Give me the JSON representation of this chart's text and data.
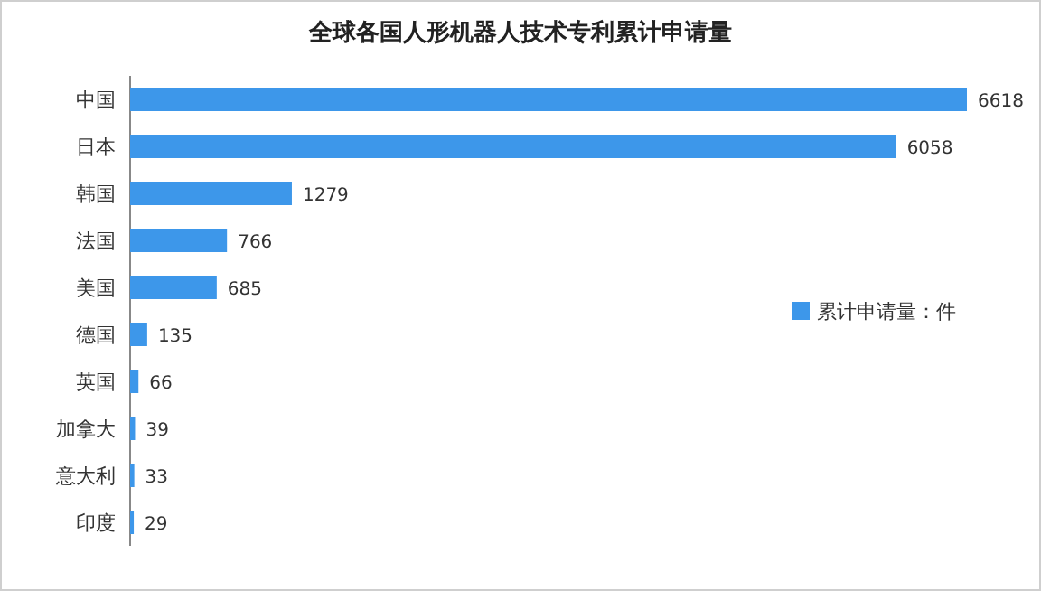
{
  "chart_data": {
    "type": "bar",
    "orientation": "horizontal",
    "title": "全球各国人形机器人技术专利累计申请量",
    "categories": [
      "中国",
      "日本",
      "韩国",
      "法国",
      "美国",
      "德国",
      "英国",
      "加拿大",
      "意大利",
      "印度"
    ],
    "series": [
      {
        "name": "累计申请量：件",
        "color": "#3d97ea",
        "values": [
          6618,
          6058,
          1279,
          766,
          685,
          135,
          66,
          39,
          33,
          29
        ]
      }
    ],
    "data_labels": true,
    "legend": "right",
    "tick_labels": "y"
  }
}
